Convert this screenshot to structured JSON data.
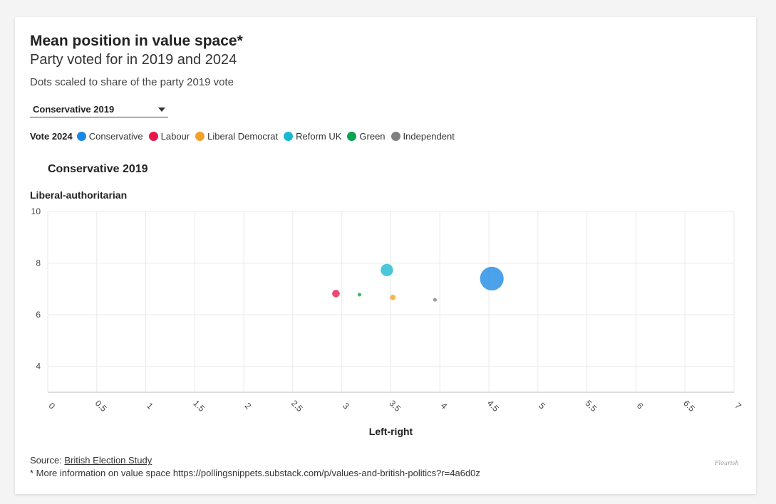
{
  "header": {
    "title": "Mean position in value space*",
    "subtitle": "Party voted for in 2019 and 2024",
    "note": "Dots scaled to share of the party 2019 vote"
  },
  "dropdown": {
    "selected": "Conservative 2019"
  },
  "legend": {
    "title": "Vote 2024",
    "items": [
      {
        "label": "Conservative",
        "color": "#1a87e6"
      },
      {
        "label": "Labour",
        "color": "#e8174b"
      },
      {
        "label": "Liberal Democrat",
        "color": "#f2a02a"
      },
      {
        "label": "Reform UK",
        "color": "#1bb7d0"
      },
      {
        "label": "Green",
        "color": "#0aa253"
      },
      {
        "label": "Independent",
        "color": "#808080"
      }
    ]
  },
  "chart_data": {
    "type": "scatter",
    "panel_title": "Conservative 2019",
    "xlabel": "Left-right",
    "ylabel": "Liberal-authoritarian",
    "xlim": [
      0,
      7
    ],
    "ylim": [
      3,
      10
    ],
    "xticks": [
      "0",
      "0.5",
      "1",
      "1.5",
      "2",
      "2.5",
      "3",
      "3.5",
      "4",
      "4.5",
      "5",
      "5.5",
      "6",
      "6.5",
      "7"
    ],
    "yticks": [
      "4",
      "6",
      "8",
      "10"
    ],
    "grid": true,
    "points": [
      {
        "series": "Conservative",
        "x": 4.53,
        "y": 7.4,
        "share": 0.69,
        "color": "#1a87e6"
      },
      {
        "series": "Reform UK",
        "x": 3.46,
        "y": 7.73,
        "share": 0.19,
        "color": "#1bb7d0"
      },
      {
        "series": "Labour",
        "x": 2.94,
        "y": 6.82,
        "share": 0.07,
        "color": "#e8174b"
      },
      {
        "series": "Liberal Democrat",
        "x": 3.52,
        "y": 6.67,
        "share": 0.04,
        "color": "#f2a02a"
      },
      {
        "series": "Green",
        "x": 3.18,
        "y": 6.78,
        "share": 0.01,
        "color": "#0aa253"
      },
      {
        "series": "Independent",
        "x": 3.95,
        "y": 6.58,
        "share": 0.01,
        "color": "#808080"
      }
    ]
  },
  "footer": {
    "source_prefix": "Source: ",
    "source_link": "British Election Study",
    "footnote": "* More information on value space https://pollingsnippets.substack.com/p/values-and-british-politics?r=4a6d0z",
    "watermark": "Flourish"
  }
}
